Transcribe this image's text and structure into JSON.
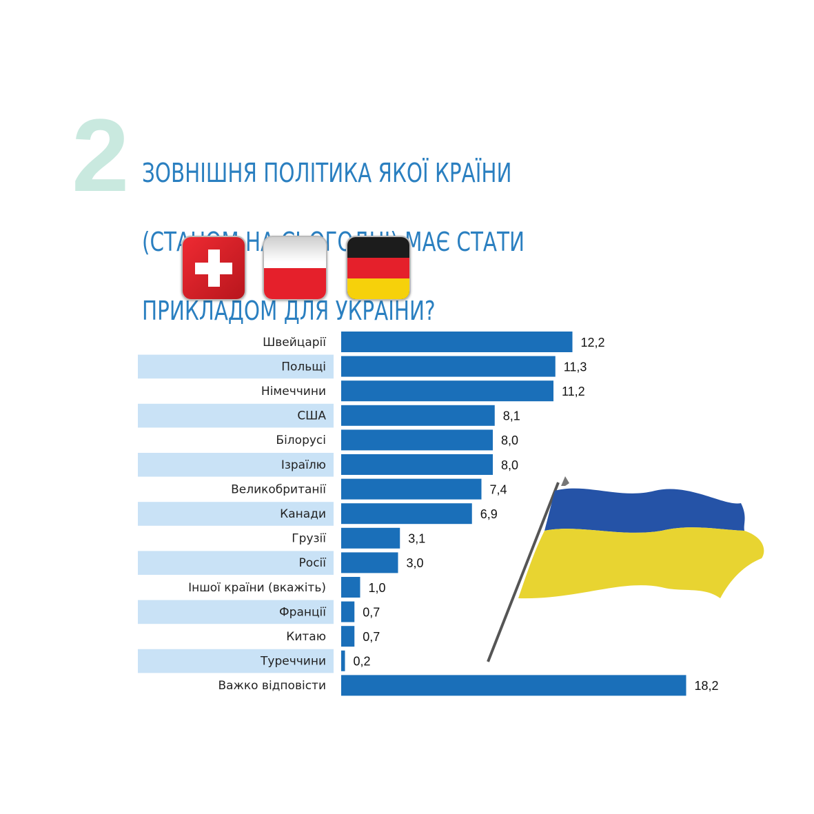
{
  "question_number": "2",
  "title_lines": [
    "ЗОВНІШНЯ ПОЛІТИКА ЯКОЇ КРАЇНИ",
    "(СТАНОМ НА СЬОГОДНІ) МАЄ СТАТИ",
    "ПРИКЛАДОМ ДЛЯ УКРАЇНИ?"
  ],
  "flags": [
    "switzerland-flag-icon",
    "poland-flag-icon",
    "germany-flag-icon",
    "ukraine-flag-icon"
  ],
  "colors": {
    "bar": "#1a6fb9",
    "stripe": "#c9e2f6",
    "title": "#2a7fc0",
    "number": "#c9e9df"
  },
  "chart_data": {
    "type": "bar",
    "orientation": "horizontal",
    "categories": [
      "Швейцарії",
      "Польщі",
      "Німеччини",
      "США",
      "Білорусі",
      "Ізраїлю",
      "Великобританії",
      "Канади",
      "Грузії",
      "Росії",
      "Іншої країни (вкажіть)",
      "Франції",
      "Китаю",
      "Туреччини",
      "Важко відповісти"
    ],
    "values": [
      12.2,
      11.3,
      11.2,
      8.1,
      8.0,
      8.0,
      7.4,
      6.9,
      3.1,
      3.0,
      1.0,
      0.7,
      0.7,
      0.2,
      18.2
    ],
    "value_labels": [
      "12,2",
      "11,3",
      "11,2",
      "8,1",
      "8,0",
      "8,0",
      "7,4",
      "6,9",
      "3,1",
      "3,0",
      "1,0",
      "0,7",
      "0,7",
      "0,2",
      "18,2"
    ],
    "xlim": [
      0,
      20
    ],
    "grid": false,
    "legend": "none"
  }
}
